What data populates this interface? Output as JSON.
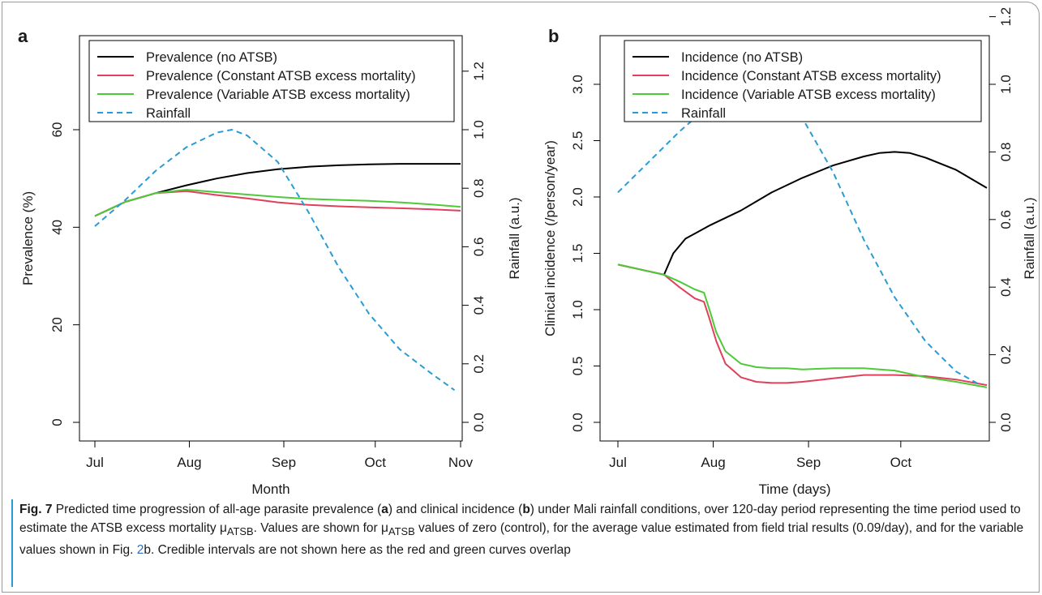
{
  "panels": [
    {
      "letter": "a",
      "xlabel": "Month",
      "ylabel": "Prevalence (%)",
      "y2label": "Rainfall (a.u.)"
    },
    {
      "letter": "b",
      "xlabel": "Time (days)",
      "ylabel": "Clinical incidence (/person/year)",
      "y2label": "Rainfall (a.u.)"
    }
  ],
  "colors": {
    "no_atsb": "#000000",
    "constant": "#e0405a",
    "variable": "#4fc93a",
    "rainfall": "#2a9bd4"
  },
  "chart_data": [
    {
      "type": "line",
      "panel": "a",
      "xlabel": "Month",
      "ylabel": "Prevalence (%)",
      "y2label": "Rainfall (a.u.)",
      "xlim": [
        0,
        120
      ],
      "xticks": [
        {
          "x": 0,
          "label": "Jul"
        },
        {
          "x": 31,
          "label": "Aug"
        },
        {
          "x": 62,
          "label": "Sep"
        },
        {
          "x": 92,
          "label": "Oct"
        },
        {
          "x": 120,
          "label": "Nov"
        }
      ],
      "ylim": [
        0,
        75
      ],
      "yticks": [
        0,
        20,
        40,
        60
      ],
      "y2lim": [
        0,
        1.25
      ],
      "y2ticks": [
        "0.0",
        "0.2",
        "0.4",
        "0.6",
        "0.8",
        "1.0",
        "1.2"
      ],
      "legend_position": "top",
      "series": [
        {
          "name": "Prevalence (no ATSB)",
          "axis": "left",
          "color": "#000000",
          "dash": "solid",
          "x": [
            0,
            10,
            20,
            30,
            40,
            50,
            60,
            70,
            80,
            90,
            100,
            110,
            120
          ],
          "y": [
            42.3,
            45.2,
            47.0,
            48.6,
            50.0,
            51.1,
            51.9,
            52.4,
            52.7,
            52.9,
            53.0,
            53.0,
            53.0
          ]
        },
        {
          "name": "Prevalence (Constant ATSB excess mortality)",
          "axis": "left",
          "color": "#e0405a",
          "dash": "solid",
          "x": [
            0,
            10,
            20,
            30,
            40,
            50,
            60,
            70,
            80,
            90,
            100,
            110,
            120
          ],
          "y": [
            42.3,
            45.2,
            47.0,
            47.4,
            46.6,
            45.9,
            45.1,
            44.6,
            44.3,
            44.1,
            43.9,
            43.7,
            43.4
          ]
        },
        {
          "name": "Prevalence (Variable ATSB excess mortality)",
          "axis": "left",
          "color": "#4fc93a",
          "dash": "solid",
          "x": [
            0,
            10,
            20,
            30,
            40,
            50,
            60,
            70,
            80,
            90,
            100,
            110,
            120
          ],
          "y": [
            42.3,
            45.2,
            47.0,
            47.7,
            47.2,
            46.7,
            46.2,
            45.8,
            45.6,
            45.4,
            45.1,
            44.7,
            44.2
          ]
        },
        {
          "name": "Rainfall",
          "axis": "right",
          "color": "#2a9bd4",
          "dash": "dashed",
          "x": [
            0,
            10,
            20,
            30,
            40,
            45,
            50,
            60,
            70,
            80,
            90,
            100,
            110,
            118
          ],
          "y": [
            0.67,
            0.76,
            0.86,
            0.94,
            0.99,
            1.0,
            0.98,
            0.89,
            0.72,
            0.53,
            0.37,
            0.25,
            0.17,
            0.11
          ]
        }
      ]
    },
    {
      "type": "line",
      "panel": "b",
      "xlabel": "Time (days)",
      "ylabel": "Clinical incidence (/person/year)",
      "y2label": "Rainfall (a.u.)",
      "xlim": [
        0,
        120
      ],
      "xticks": [
        {
          "x": 0,
          "label": "Jul"
        },
        {
          "x": 31,
          "label": "Aug"
        },
        {
          "x": 62,
          "label": "Sep"
        },
        {
          "x": 92,
          "label": "Oct"
        }
      ],
      "ylim": [
        0,
        3.2
      ],
      "yticks": [
        "0.0",
        "0.5",
        "1.0",
        "1.5",
        "2.0",
        "2.5",
        "3.0"
      ],
      "y2lim": [
        0,
        1.32
      ],
      "y2ticks": [
        "0.0",
        "0.2",
        "0.4",
        "0.6",
        "0.8",
        "1.0",
        "1.2"
      ],
      "legend_position": "top",
      "series": [
        {
          "name": "Incidence (no ATSB)",
          "axis": "left",
          "color": "#000000",
          "dash": "solid",
          "x": [
            0,
            10,
            15,
            18,
            22,
            26,
            30,
            40,
            50,
            60,
            70,
            80,
            85,
            90,
            95,
            100,
            110,
            120
          ],
          "y": [
            1.4,
            1.34,
            1.31,
            1.5,
            1.63,
            1.69,
            1.75,
            1.88,
            2.04,
            2.17,
            2.28,
            2.36,
            2.39,
            2.4,
            2.39,
            2.35,
            2.24,
            2.08
          ]
        },
        {
          "name": "Incidence (Constant ATSB excess mortality)",
          "axis": "left",
          "color": "#e0405a",
          "dash": "solid",
          "x": [
            0,
            10,
            15,
            20,
            25,
            28,
            30,
            32,
            35,
            40,
            45,
            50,
            55,
            60,
            70,
            80,
            90,
            100,
            110,
            120
          ],
          "y": [
            1.4,
            1.34,
            1.31,
            1.2,
            1.1,
            1.07,
            0.9,
            0.72,
            0.52,
            0.4,
            0.36,
            0.35,
            0.35,
            0.36,
            0.39,
            0.42,
            0.42,
            0.41,
            0.38,
            0.33
          ]
        },
        {
          "name": "Incidence (Variable ATSB excess mortality)",
          "axis": "left",
          "color": "#4fc93a",
          "dash": "solid",
          "x": [
            0,
            10,
            15,
            20,
            25,
            28,
            30,
            32,
            35,
            40,
            45,
            50,
            55,
            60,
            70,
            80,
            90,
            100,
            110,
            120
          ],
          "y": [
            1.4,
            1.34,
            1.31,
            1.25,
            1.18,
            1.15,
            0.98,
            0.8,
            0.63,
            0.52,
            0.49,
            0.48,
            0.48,
            0.47,
            0.48,
            0.48,
            0.46,
            0.4,
            0.36,
            0.31
          ]
        },
        {
          "name": "Rainfall",
          "axis": "right",
          "color": "#2a9bd4",
          "dash": "dashed",
          "x": [
            0,
            10,
            20,
            30,
            40,
            45,
            50,
            60,
            70,
            80,
            90,
            100,
            110,
            118
          ],
          "y": [
            0.68,
            0.77,
            0.86,
            0.94,
            0.99,
            1.0,
            0.99,
            0.9,
            0.74,
            0.54,
            0.37,
            0.24,
            0.15,
            0.11
          ]
        }
      ]
    }
  ],
  "caption": {
    "fig_label": "Fig. 7",
    "text_1": " Predicted time progression of all-age parasite prevalence (",
    "bold_a": "a",
    "text_2": ") and clinical incidence (",
    "bold_b": "b",
    "text_3": ") under Mali rainfall conditions, over 120-day period representing the time period used to estimate the ATSB excess mortality μ",
    "sub_1": "ATSB",
    "text_4": ". Values are shown for μ",
    "sub_2": "ATSB",
    "text_5": " values of zero (control), for the average value estimated from field trial results (0.09/day), and for the variable values shown in Fig. ",
    "link_text": "2",
    "text_6": "b. Credible intervals are not shown here as the red and green curves overlap"
  }
}
